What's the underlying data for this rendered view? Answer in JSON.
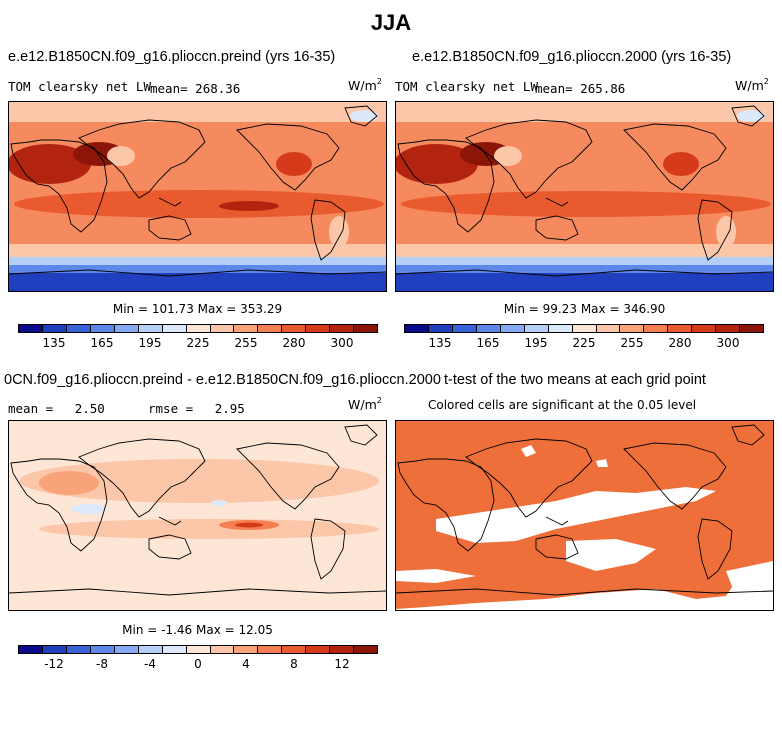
{
  "season": "JJA",
  "panels": [
    {
      "title": "e.e12.B1850CN.f09_g16.plioccn.preind (yrs 16-35)",
      "variable": "TOM clearsky net LW",
      "mean_label": "mean=",
      "mean_value": "268.36",
      "units": "W/m",
      "units_exp": "2",
      "minmax": "Min = 101.73 Max = 353.29"
    },
    {
      "title": "e.e12.B1850CN.f09_g16.plioccn.2000 (yrs 16-35)",
      "variable": "TOM clearsky net LW",
      "mean_label": "mean=",
      "mean_value": "265.86",
      "units": "W/m",
      "units_exp": "2",
      "minmax": "Min =  99.23 Max = 346.90"
    },
    {
      "title": "0CN.f09_g16.plioccn.preind - e.e12.B1850CN.f09_g16.plioccn.2000",
      "mean_label": "mean =",
      "mean_value": "2.50",
      "rmse_label": "rmse =",
      "rmse_value": "2.95",
      "units": "W/m",
      "units_exp": "2",
      "minmax": "Min =  -1.46 Max =  12.05"
    },
    {
      "title": "t-test of the two means at each grid point",
      "subtitle": "Colored cells are significant at the 0.05 level"
    }
  ],
  "colorbar_abs": {
    "colors": [
      "#0a0a8c",
      "#1f3fbf",
      "#3a63d9",
      "#5e87ea",
      "#86abf2",
      "#b4cff8",
      "#dce9fb",
      "#fde6d6",
      "#fcc6a8",
      "#f9a37b",
      "#f47f53",
      "#ea5a2f",
      "#d53b1a",
      "#b2240f",
      "#8c1509"
    ],
    "ticks": [
      "135",
      "165",
      "195",
      "225",
      "255",
      "280",
      "300"
    ]
  },
  "colorbar_diff": {
    "colors": [
      "#0a0a8c",
      "#1f3fbf",
      "#3a63d9",
      "#5e87ea",
      "#86abf2",
      "#b4cff8",
      "#dce9fb",
      "#fde6d6",
      "#fcc6a8",
      "#f9a37b",
      "#f47f53",
      "#ea5a2f",
      "#d53b1a",
      "#b2240f",
      "#8c1509"
    ],
    "ticks": [
      "-12",
      "-8",
      "-4",
      "0",
      "4",
      "8",
      "12"
    ]
  },
  "colors": {
    "ocean_warm": "#f06a3e",
    "tropics": "#e0481f",
    "desert": "#a51c0c",
    "polar": "#1a3fb0",
    "diff_bg": "#fde6d6",
    "sig": "#ef6f3a"
  }
}
